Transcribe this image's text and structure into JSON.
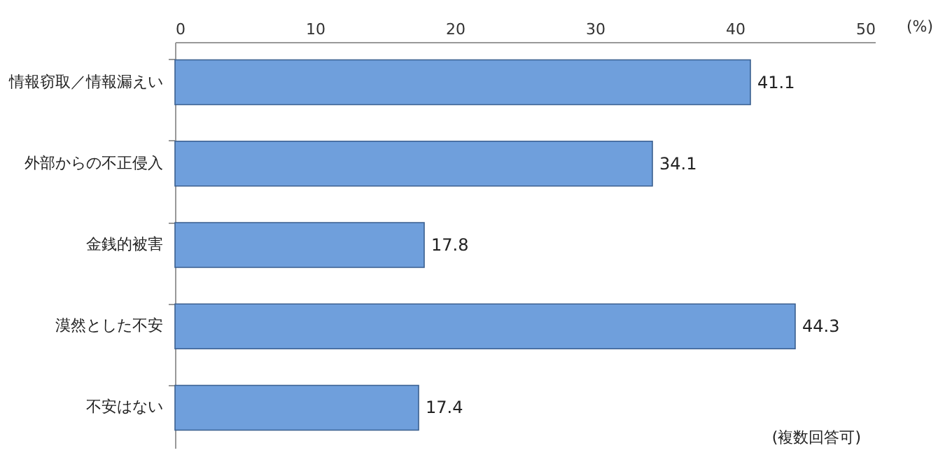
{
  "chart_data": {
    "type": "bar",
    "orientation": "horizontal",
    "xlabel": "(%)",
    "categories": [
      "情報窃取／情報漏えい",
      "外部からの不正侵入",
      "金銭的被害",
      "漠然とした不安",
      "不安はない"
    ],
    "values": [
      41.1,
      34.1,
      17.8,
      44.3,
      17.4
    ],
    "color": "#6f9fdc",
    "xlim": [
      0,
      50
    ],
    "xticks": [
      0,
      10,
      20,
      30,
      40,
      50
    ],
    "data_labels": true,
    "grid": false,
    "annotations": [
      "(複数回答可)"
    ]
  }
}
